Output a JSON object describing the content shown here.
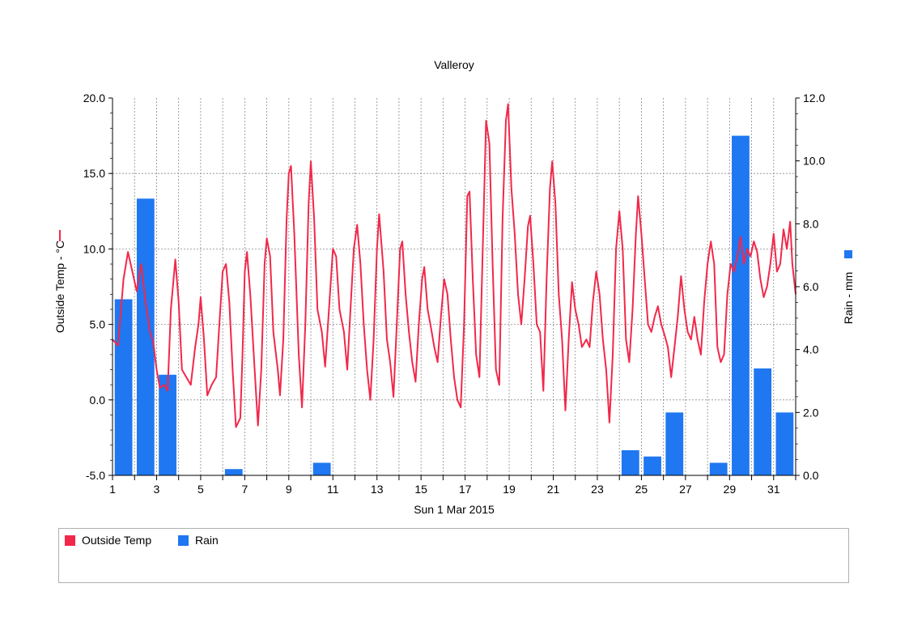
{
  "chart_data": {
    "type": "line+bar",
    "title": "Valleroy",
    "xlabel": "Sun 1 Mar 2015",
    "x_ticks": [
      "1",
      "3",
      "5",
      "7",
      "9",
      "11",
      "13",
      "15",
      "17",
      "19",
      "21",
      "23",
      "25",
      "27",
      "29",
      "31"
    ],
    "xlim": [
      1,
      32
    ],
    "left_axis": {
      "label": "Outside Temp - °C",
      "ylim": [
        -5,
        20
      ],
      "ticks": [
        "-5.0",
        "0.0",
        "5.0",
        "10.0",
        "15.0",
        "20.0"
      ]
    },
    "right_axis": {
      "label": "Rain - mm",
      "ylim": [
        0,
        12
      ],
      "ticks": [
        "0.0",
        "2.0",
        "4.0",
        "6.0",
        "8.0",
        "10.0",
        "12.0"
      ]
    },
    "grid": true,
    "legend_position": "bottom",
    "series": [
      {
        "name": "Outside Temp",
        "type": "line",
        "axis": "left",
        "color": "#f2284a",
        "points": [
          [
            1.0,
            4.0
          ],
          [
            1.25,
            3.6
          ],
          [
            1.5,
            8.0
          ],
          [
            1.7,
            9.8
          ],
          [
            1.9,
            8.5
          ],
          [
            2.1,
            7.2
          ],
          [
            2.3,
            9.0
          ],
          [
            2.5,
            6.5
          ],
          [
            2.7,
            4.5
          ],
          [
            2.85,
            3.8
          ],
          [
            3.0,
            2.0
          ],
          [
            3.15,
            0.8
          ],
          [
            3.35,
            1.0
          ],
          [
            3.5,
            0.6
          ],
          [
            3.65,
            6.0
          ],
          [
            3.85,
            9.3
          ],
          [
            4.0,
            6.5
          ],
          [
            4.15,
            2.0
          ],
          [
            4.35,
            1.5
          ],
          [
            4.55,
            1.0
          ],
          [
            4.75,
            3.5
          ],
          [
            4.9,
            5.0
          ],
          [
            5.0,
            6.8
          ],
          [
            5.15,
            4.0
          ],
          [
            5.3,
            0.3
          ],
          [
            5.5,
            1.0
          ],
          [
            5.7,
            1.5
          ],
          [
            5.85,
            5.0
          ],
          [
            6.0,
            8.5
          ],
          [
            6.15,
            9.0
          ],
          [
            6.3,
            6.5
          ],
          [
            6.45,
            2.0
          ],
          [
            6.6,
            -1.8
          ],
          [
            6.8,
            -1.2
          ],
          [
            6.9,
            3.0
          ],
          [
            7.0,
            8.5
          ],
          [
            7.1,
            9.8
          ],
          [
            7.25,
            7.0
          ],
          [
            7.45,
            2.0
          ],
          [
            7.6,
            -1.7
          ],
          [
            7.75,
            2.0
          ],
          [
            7.9,
            9.0
          ],
          [
            8.0,
            10.7
          ],
          [
            8.15,
            9.5
          ],
          [
            8.3,
            4.5
          ],
          [
            8.5,
            2.0
          ],
          [
            8.6,
            0.3
          ],
          [
            8.75,
            4.0
          ],
          [
            8.9,
            12.0
          ],
          [
            9.0,
            15.0
          ],
          [
            9.1,
            15.5
          ],
          [
            9.25,
            11.0
          ],
          [
            9.45,
            3.0
          ],
          [
            9.6,
            -0.5
          ],
          [
            9.75,
            5.0
          ],
          [
            9.9,
            13.0
          ],
          [
            10.0,
            15.8
          ],
          [
            10.15,
            12.0
          ],
          [
            10.3,
            6.0
          ],
          [
            10.5,
            4.5
          ],
          [
            10.65,
            2.2
          ],
          [
            10.8,
            5.5
          ],
          [
            11.0,
            10.0
          ],
          [
            11.15,
            9.5
          ],
          [
            11.3,
            6.0
          ],
          [
            11.5,
            4.5
          ],
          [
            11.65,
            2.0
          ],
          [
            11.8,
            6.0
          ],
          [
            11.95,
            10.0
          ],
          [
            12.1,
            11.6
          ],
          [
            12.25,
            9.0
          ],
          [
            12.4,
            5.0
          ],
          [
            12.55,
            2.0
          ],
          [
            12.7,
            0.0
          ],
          [
            12.85,
            4.0
          ],
          [
            13.0,
            10.0
          ],
          [
            13.1,
            12.3
          ],
          [
            13.3,
            8.5
          ],
          [
            13.45,
            4.0
          ],
          [
            13.6,
            2.5
          ],
          [
            13.75,
            0.2
          ],
          [
            13.9,
            5.0
          ],
          [
            14.05,
            10.0
          ],
          [
            14.15,
            10.5
          ],
          [
            14.3,
            7.0
          ],
          [
            14.45,
            4.5
          ],
          [
            14.6,
            2.5
          ],
          [
            14.75,
            1.2
          ],
          [
            14.9,
            5.0
          ],
          [
            15.05,
            8.0
          ],
          [
            15.15,
            8.8
          ],
          [
            15.3,
            6.0
          ],
          [
            15.45,
            4.8
          ],
          [
            15.6,
            3.5
          ],
          [
            15.75,
            2.5
          ],
          [
            15.9,
            5.5
          ],
          [
            16.05,
            8.0
          ],
          [
            16.2,
            7.0
          ],
          [
            16.35,
            4.0
          ],
          [
            16.5,
            1.5
          ],
          [
            16.65,
            0.0
          ],
          [
            16.8,
            -0.5
          ],
          [
            16.95,
            5.0
          ],
          [
            17.1,
            13.5
          ],
          [
            17.2,
            13.8
          ],
          [
            17.35,
            8.0
          ],
          [
            17.5,
            3.0
          ],
          [
            17.65,
            1.5
          ],
          [
            17.8,
            10.0
          ],
          [
            17.95,
            18.5
          ],
          [
            18.1,
            17.0
          ],
          [
            18.25,
            9.0
          ],
          [
            18.4,
            2.0
          ],
          [
            18.55,
            1.0
          ],
          [
            18.7,
            12.0
          ],
          [
            18.85,
            18.5
          ],
          [
            18.95,
            19.6
          ],
          [
            19.1,
            14.0
          ],
          [
            19.25,
            11.0
          ],
          [
            19.4,
            7.0
          ],
          [
            19.55,
            5.0
          ],
          [
            19.7,
            8.0
          ],
          [
            19.85,
            11.5
          ],
          [
            19.95,
            12.2
          ],
          [
            20.1,
            9.0
          ],
          [
            20.25,
            5.0
          ],
          [
            20.4,
            4.5
          ],
          [
            20.55,
            0.6
          ],
          [
            20.7,
            8.0
          ],
          [
            20.85,
            14.0
          ],
          [
            20.95,
            15.8
          ],
          [
            21.1,
            13.0
          ],
          [
            21.25,
            7.0
          ],
          [
            21.4,
            4.0
          ],
          [
            21.55,
            -0.7
          ],
          [
            21.7,
            4.0
          ],
          [
            21.85,
            7.8
          ],
          [
            22.0,
            6.0
          ],
          [
            22.15,
            5.0
          ],
          [
            22.3,
            3.5
          ],
          [
            22.5,
            4.0
          ],
          [
            22.65,
            3.5
          ],
          [
            22.8,
            6.5
          ],
          [
            22.95,
            8.5
          ],
          [
            23.1,
            7.0
          ],
          [
            23.25,
            4.0
          ],
          [
            23.4,
            2.0
          ],
          [
            23.55,
            -1.5
          ],
          [
            23.7,
            3.0
          ],
          [
            23.85,
            10.0
          ],
          [
            24.0,
            12.5
          ],
          [
            24.15,
            10.0
          ],
          [
            24.3,
            4.0
          ],
          [
            24.45,
            2.5
          ],
          [
            24.6,
            6.0
          ],
          [
            24.75,
            11.0
          ],
          [
            24.85,
            13.5
          ],
          [
            25.0,
            11.0
          ],
          [
            25.15,
            8.0
          ],
          [
            25.3,
            5.0
          ],
          [
            25.45,
            4.5
          ],
          [
            25.6,
            5.5
          ],
          [
            25.75,
            6.2
          ],
          [
            25.9,
            5.0
          ],
          [
            26.05,
            4.3
          ],
          [
            26.2,
            3.5
          ],
          [
            26.35,
            1.5
          ],
          [
            26.5,
            3.5
          ],
          [
            26.65,
            5.5
          ],
          [
            26.8,
            8.2
          ],
          [
            26.95,
            6.0
          ],
          [
            27.1,
            4.5
          ],
          [
            27.25,
            4.0
          ],
          [
            27.4,
            5.5
          ],
          [
            27.55,
            4.0
          ],
          [
            27.7,
            3.0
          ],
          [
            27.85,
            6.5
          ],
          [
            28.0,
            9.0
          ],
          [
            28.15,
            10.5
          ],
          [
            28.3,
            9.0
          ],
          [
            28.45,
            3.5
          ],
          [
            28.6,
            2.5
          ],
          [
            28.75,
            3.0
          ],
          [
            28.9,
            7.0
          ],
          [
            29.05,
            9.0
          ],
          [
            29.2,
            8.5
          ],
          [
            29.35,
            9.5
          ],
          [
            29.5,
            10.8
          ],
          [
            29.65,
            9.0
          ],
          [
            29.8,
            10.0
          ],
          [
            29.95,
            9.5
          ],
          [
            30.1,
            10.5
          ],
          [
            30.25,
            9.8
          ],
          [
            30.4,
            8.0
          ],
          [
            30.55,
            6.8
          ],
          [
            30.7,
            7.5
          ],
          [
            30.85,
            9.0
          ],
          [
            31.0,
            11.0
          ],
          [
            31.15,
            8.5
          ],
          [
            31.3,
            9.0
          ],
          [
            31.45,
            11.3
          ],
          [
            31.6,
            10.0
          ],
          [
            31.75,
            11.8
          ],
          [
            31.85,
            9.0
          ],
          [
            32.0,
            7.0
          ]
        ]
      },
      {
        "name": "Rain",
        "type": "bar",
        "axis": "right",
        "color": "#1f77f2",
        "bars": [
          [
            1.5,
            5.6
          ],
          [
            2.5,
            8.8
          ],
          [
            3.5,
            3.2
          ],
          [
            6.5,
            0.2
          ],
          [
            10.5,
            0.4
          ],
          [
            24.5,
            0.8
          ],
          [
            25.5,
            0.6
          ],
          [
            26.5,
            2.0
          ],
          [
            28.5,
            0.4
          ],
          [
            29.5,
            10.8
          ],
          [
            30.5,
            3.4
          ],
          [
            31.5,
            2.0
          ]
        ]
      }
    ]
  }
}
